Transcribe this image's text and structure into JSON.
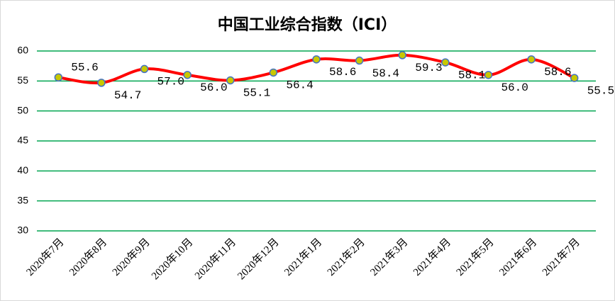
{
  "chart_data": {
    "type": "line",
    "title": "中国工业综合指数（ICI）",
    "categories": [
      "2020年7月",
      "2020年8月",
      "2020年9月",
      "2020年10月",
      "2020年11月",
      "2020年12月",
      "2021年1月",
      "2021年2月",
      "2021年3月",
      "2021年4月",
      "2021年5月",
      "2021年6月",
      "2021年7月"
    ],
    "values": [
      55.6,
      54.7,
      57.0,
      56.0,
      55.1,
      56.4,
      58.6,
      58.4,
      59.3,
      58.1,
      56.0,
      58.6,
      55.5
    ],
    "value_labels": [
      "55.6",
      "54.7",
      "57.0",
      "56.0",
      "55.1",
      "56.4",
      "58.6",
      "58.4",
      "59.3",
      "58.1",
      "56.0",
      "58.6",
      "55.5"
    ],
    "color": "#ff0000",
    "marker_color": "#c8c800",
    "grid_color": "#00a550",
    "ylim": [
      30,
      60
    ],
    "yticks": [
      30,
      35,
      40,
      45,
      50,
      55,
      60
    ],
    "grid": true,
    "smooth": true
  }
}
